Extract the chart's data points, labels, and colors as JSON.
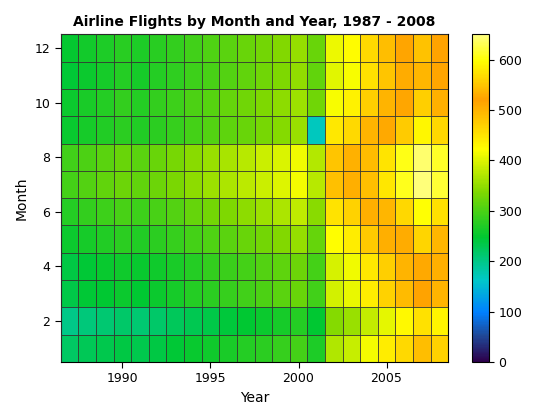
{
  "title": "Airline Flights by Month and Year, 1987 - 2008",
  "xlabel": "Year",
  "ylabel": "Month",
  "years": [
    1987,
    1988,
    1989,
    1990,
    1991,
    1992,
    1993,
    1994,
    1995,
    1996,
    1997,
    1998,
    1999,
    2000,
    2001,
    2002,
    2003,
    2004,
    2005,
    2006,
    2007,
    2008
  ],
  "months": [
    1,
    2,
    3,
    4,
    5,
    6,
    7,
    8,
    9,
    10,
    11,
    12
  ],
  "data": [
    [
      220,
      228,
      232,
      238,
      232,
      238,
      245,
      252,
      258,
      265,
      272,
      278,
      285,
      295,
      268,
      370,
      385,
      415,
      440,
      462,
      490,
      468
    ],
    [
      200,
      208,
      212,
      218,
      212,
      218,
      224,
      230,
      236,
      242,
      248,
      255,
      262,
      272,
      248,
      342,
      355,
      382,
      406,
      428,
      454,
      432
    ],
    [
      235,
      244,
      248,
      256,
      248,
      256,
      263,
      272,
      278,
      286,
      293,
      302,
      310,
      322,
      292,
      392,
      408,
      440,
      468,
      492,
      522,
      498
    ],
    [
      238,
      246,
      252,
      258,
      252,
      258,
      265,
      274,
      282,
      288,
      296,
      305,
      314,
      324,
      295,
      396,
      412,
      445,
      472,
      498,
      528,
      504
    ],
    [
      255,
      264,
      270,
      278,
      270,
      278,
      285,
      296,
      304,
      312,
      320,
      330,
      340,
      352,
      318,
      422,
      440,
      475,
      504,
      530,
      562,
      538
    ],
    [
      272,
      282,
      290,
      298,
      290,
      298,
      306,
      318,
      328,
      336,
      346,
      356,
      368,
      380,
      345,
      450,
      468,
      505,
      536,
      564,
      598,
      572
    ],
    [
      295,
      305,
      315,
      324,
      315,
      324,
      333,
      346,
      356,
      366,
      376,
      388,
      400,
      414,
      375,
      486,
      505,
      545,
      578,
      608,
      645,
      618
    ],
    [
      292,
      302,
      312,
      322,
      312,
      322,
      331,
      344,
      354,
      364,
      374,
      386,
      398,
      412,
      372,
      482,
      502,
      542,
      575,
      605,
      642,
      614
    ],
    [
      252,
      262,
      270,
      278,
      270,
      278,
      286,
      297,
      305,
      314,
      322,
      332,
      342,
      355,
      170,
      445,
      462,
      498,
      528,
      556,
      590,
      564
    ],
    [
      256,
      265,
      273,
      282,
      273,
      282,
      290,
      300,
      308,
      318,
      326,
      336,
      346,
      358,
      326,
      418,
      435,
      470,
      498,
      525,
      558,
      532
    ],
    [
      246,
      255,
      263,
      272,
      263,
      272,
      280,
      290,
      298,
      307,
      316,
      326,
      336,
      348,
      316,
      402,
      418,
      452,
      480,
      506,
      538,
      514
    ],
    [
      250,
      260,
      268,
      276,
      268,
      276,
      284,
      294,
      303,
      312,
      320,
      330,
      340,
      352,
      320,
      410,
      426,
      460,
      488,
      514,
      546,
      522
    ]
  ],
  "cmap": "YlOrRd_r",
  "vmin": 0,
  "vmax": 650,
  "colorbar_ticks": [
    0,
    100,
    200,
    300,
    400,
    500,
    600
  ],
  "figsize": [
    5.6,
    4.2
  ],
  "dpi": 100,
  "title_fontsize": 10,
  "label_fontsize": 10,
  "tick_fontsize": 9
}
